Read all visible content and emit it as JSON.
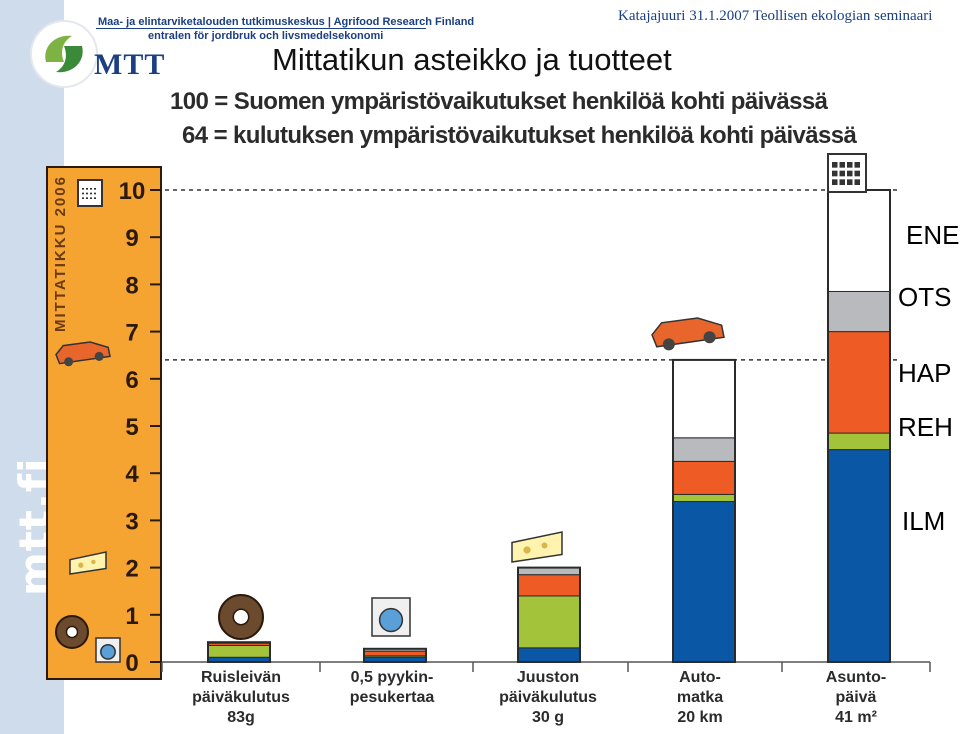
{
  "header": {
    "org_fi": "Maa- ja elintarviketalouden tutkimuskeskus  |  Agrifood Research Finland",
    "org_sv": "entralen för jordbruk och livsmedelsekonomi",
    "logo": "MTT",
    "side_text": "mtt.fi",
    "event": "Katajajuuri 31.1.2007 Teollisen ekologian seminaari"
  },
  "title": "Mittatikun asteikko ja tuotteet",
  "subtitle1": "100 = Suomen ympäristövaikutukset henkilöä kohti päivässä",
  "subtitle2": "64 = kulutuksen ympäristövaikutukset henkilöä kohti päivässä",
  "ruler_text": "MITTATIKKU 2006",
  "colors": {
    "ILM": "#0a57a6",
    "REH": "#a3c43a",
    "HAP": "#ee5b24",
    "OTS": "#b8babd",
    "ENE": "#ffffff",
    "ruler": "#f5a331",
    "outline": "#2b2b2b"
  },
  "chart_data": {
    "type": "bar",
    "stacked": true,
    "categories": [
      [
        "Ruisleivän",
        "päiväkulutus",
        "83g"
      ],
      [
        "0,5 pyykin-",
        "pesukertaa",
        ""
      ],
      [
        "Juuston",
        "päiväkulutus",
        "30 g"
      ],
      [
        "Auto-",
        "matka",
        "20 km"
      ],
      [
        "Asunto-",
        "päivä",
        "41 m²"
      ]
    ],
    "series": [
      {
        "name": "ILM",
        "values": [
          0.1,
          0.1,
          0.3,
          3.4,
          4.5
        ]
      },
      {
        "name": "REH",
        "values": [
          0.25,
          0.03,
          1.1,
          0.15,
          0.35
        ]
      },
      {
        "name": "HAP",
        "values": [
          0.05,
          0.1,
          0.45,
          0.7,
          2.15
        ]
      },
      {
        "name": "OTS",
        "values": [
          0.02,
          0.05,
          0.15,
          0.5,
          0.85
        ]
      },
      {
        "name": "ENE",
        "values": [
          0,
          0,
          0,
          1.65,
          2.15
        ]
      }
    ],
    "legend_order": [
      "ENE",
      "OTS",
      "HAP",
      "REH",
      "ILM"
    ],
    "legend_placement": "right",
    "ylim": [
      0,
      10
    ],
    "yticks": [
      "0",
      "1",
      "2",
      "3",
      "4",
      "5",
      "6",
      "7",
      "8",
      "9",
      "10"
    ],
    "reference_lines": [
      {
        "value": 10,
        "style": "dashed"
      },
      {
        "value": 6.4,
        "style": "dashed"
      }
    ],
    "grid": false
  }
}
